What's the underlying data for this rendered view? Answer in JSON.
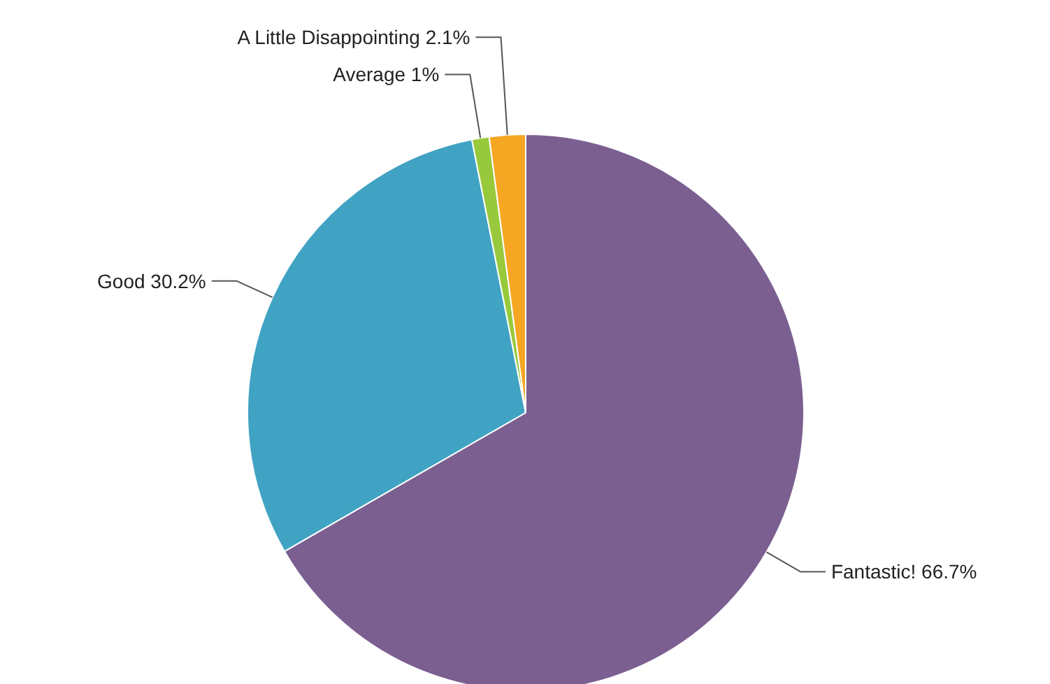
{
  "chart_data": {
    "type": "pie",
    "categories": [
      "Fantastic!",
      "Good",
      "Average",
      "A Little Disappointing"
    ],
    "values": [
      66.7,
      30.2,
      1,
      2.1
    ],
    "colors": [
      "#7b5f91",
      "#41a3c3",
      "#98c93c",
      "#f5a623"
    ],
    "value_labels": [
      "66.7%",
      "30.2%",
      "1%",
      "2.1%"
    ],
    "legend": false
  }
}
